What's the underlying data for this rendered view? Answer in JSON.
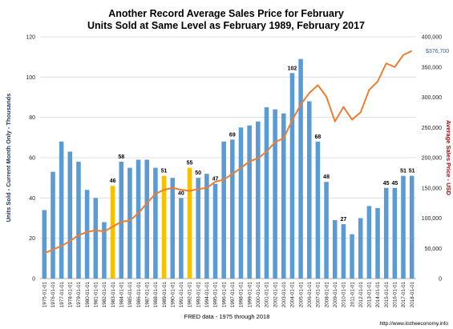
{
  "chart_data": {
    "type": "bar",
    "title": "Another Record Average Sales Price for February",
    "subtitle": "Units Sold at Same Level as February  1989, February 2017",
    "xlabel": "FRED data - 1975 through 2018",
    "ylabel": "Units Sold - Current Month Only - Thousands",
    "y2label": "Average Sales Price - USD",
    "source": "http://www.itstheeconomy.info",
    "end_label": "$376,700",
    "ylim": [
      0,
      120
    ],
    "y_ticks": [
      "0",
      "20",
      "40",
      "60",
      "80",
      "100",
      "120"
    ],
    "y2lim": [
      0,
      400000
    ],
    "y2_ticks": [
      "0",
      "50,000",
      "100,000",
      "150,000",
      "200,000",
      "250,000",
      "300,000",
      "350,000",
      "400,000"
    ],
    "categories": [
      "1975-01-01",
      "1976-01-01",
      "1977-01-01",
      "1978-01-01",
      "1979-01-01",
      "1980-01-01",
      "1981-01-01",
      "1982-01-01",
      "1983-01-01",
      "1984-01-01",
      "1985-01-01",
      "1986-01-01",
      "1987-01-01",
      "1988-01-01",
      "1989-01-01",
      "1990-01-01",
      "1991-01-01",
      "1992-01-01",
      "1993-01-01",
      "1994-01-01",
      "1995-01-01",
      "1996-01-01",
      "1997-01-01",
      "1998-01-01",
      "1999-01-01",
      "2000-01-01",
      "2001-01-01",
      "2002-01-01",
      "2003-01-01",
      "2004-01-01",
      "2005-01-01",
      "2006-01-01",
      "2007-01-01",
      "2008-01-01",
      "2009-01-01",
      "2010-01-01",
      "2011-01-01",
      "2012-01-01",
      "2013-01-01",
      "2014-01-01",
      "2015-01-01",
      "2016-01-01",
      "2017-01-01",
      "2018-01-01"
    ],
    "series": [
      {
        "name": "Units Sold",
        "axis": "left",
        "kind": "bar",
        "values": [
          34,
          53,
          68,
          63,
          58,
          44,
          40,
          28,
          46,
          58,
          55,
          59,
          59,
          55,
          51,
          50,
          40,
          55,
          50,
          52,
          47,
          68,
          69,
          75,
          76,
          78,
          85,
          84,
          82,
          102,
          109,
          88,
          68,
          48,
          29,
          27,
          22,
          30,
          36,
          35,
          45,
          45,
          51,
          51
        ],
        "highlight_indices": [
          8,
          14,
          17
        ],
        "data_labels": {
          "8": "46",
          "9": "58",
          "14": "51",
          "16": "40",
          "17": "55",
          "18": "50",
          "20": "47",
          "22": "69",
          "29": "102",
          "32": "68",
          "33": "48",
          "35": "27",
          "40": "45",
          "41": "45",
          "42": "51",
          "43": "51"
        }
      },
      {
        "name": "Average Sales Price",
        "axis": "right",
        "kind": "line",
        "values": [
          42000,
          48000,
          54000,
          62000,
          72000,
          77000,
          80000,
          78000,
          86000,
          94000,
          96000,
          108000,
          125000,
          140000,
          147000,
          150000,
          147000,
          145000,
          148000,
          150000,
          160000,
          164000,
          173000,
          183000,
          194000,
          199000,
          210000,
          226000,
          232000,
          262000,
          288000,
          307000,
          320000,
          301000,
          260000,
          284000,
          263000,
          275000,
          312000,
          326000,
          356000,
          350000,
          370000,
          376700
        ]
      }
    ],
    "colors": {
      "bar": "#5b9bd5",
      "highlight": "#f5c100",
      "line": "#ed7d31",
      "left_axis_label": "#1f3864",
      "right_axis_label": "#c00000",
      "grid": "#d9d9d9"
    }
  }
}
